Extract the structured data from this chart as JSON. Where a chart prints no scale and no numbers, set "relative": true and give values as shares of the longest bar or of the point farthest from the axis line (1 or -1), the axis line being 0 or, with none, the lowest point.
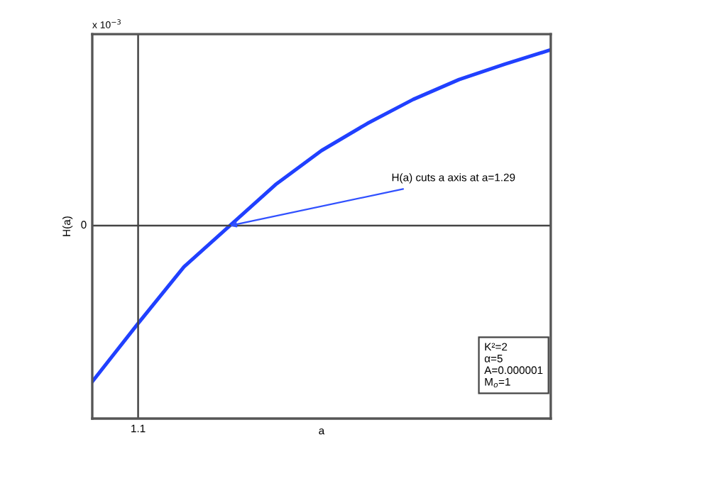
{
  "chart_data": {
    "type": "line",
    "relative": true,
    "xlabel": "a",
    "ylabel": "H(a)",
    "categories": [
      null,
      null,
      null,
      null,
      null,
      null,
      null,
      null,
      null,
      null,
      null
    ],
    "series": [
      {
        "color": "#2040ff",
        "values": [
          -0.887,
          -0.556,
          -0.234,
          0,
          0.234,
          0.427,
          0.581,
          0.718,
          0.831,
          0.919,
          1
        ]
      }
    ],
    "ref_lines": [
      {
        "axis": "y",
        "value": 0,
        "label": "0"
      }
    ],
    "marker": "none",
    "line_style": "solid",
    "annotations": [
      "H(a) cuts a axis at a=1.29",
      "1.1",
      "x 10$^{−3}$",
      "K²=2\nα=5\nA=0.000001\nM$_{o}$=1"
    ]
  }
}
